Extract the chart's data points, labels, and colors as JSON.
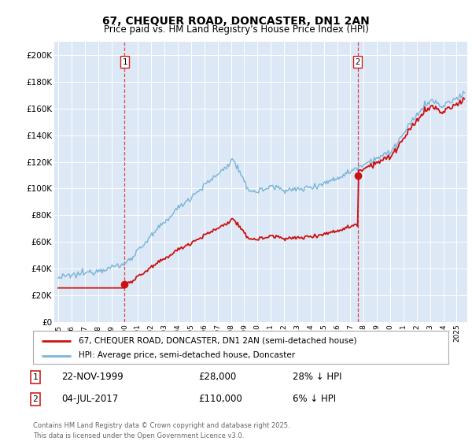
{
  "title": "67, CHEQUER ROAD, DONCASTER, DN1 2AN",
  "subtitle": "Price paid vs. HM Land Registry's House Price Index (HPI)",
  "background_color": "#dce8f5",
  "plot_bg_color": "#dce8f5",
  "ylim": [
    0,
    210000
  ],
  "yticks": [
    0,
    20000,
    40000,
    60000,
    80000,
    100000,
    120000,
    140000,
    160000,
    180000,
    200000
  ],
  "ytick_labels": [
    "£0",
    "£20K",
    "£40K",
    "£60K",
    "£80K",
    "£100K",
    "£120K",
    "£140K",
    "£160K",
    "£180K",
    "£200K"
  ],
  "legend_line1": "67, CHEQUER ROAD, DONCASTER, DN1 2AN (semi-detached house)",
  "legend_line2": "HPI: Average price, semi-detached house, Doncaster",
  "annotation1_box": "1",
  "annotation1_date": "22-NOV-1999",
  "annotation1_price": "£28,000",
  "annotation1_hpi": "28% ↓ HPI",
  "annotation2_box": "2",
  "annotation2_date": "04-JUL-2017",
  "annotation2_price": "£110,000",
  "annotation2_hpi": "6% ↓ HPI",
  "footer": "Contains HM Land Registry data © Crown copyright and database right 2025.\nThis data is licensed under the Open Government Licence v3.0.",
  "sale1_year": 2000.0,
  "sale1_price": 28000,
  "sale2_year": 2017.55,
  "sale2_price": 110000,
  "hpi_color": "#7ab4d8",
  "price_color": "#cc1111",
  "vline_color": "#cc2222"
}
